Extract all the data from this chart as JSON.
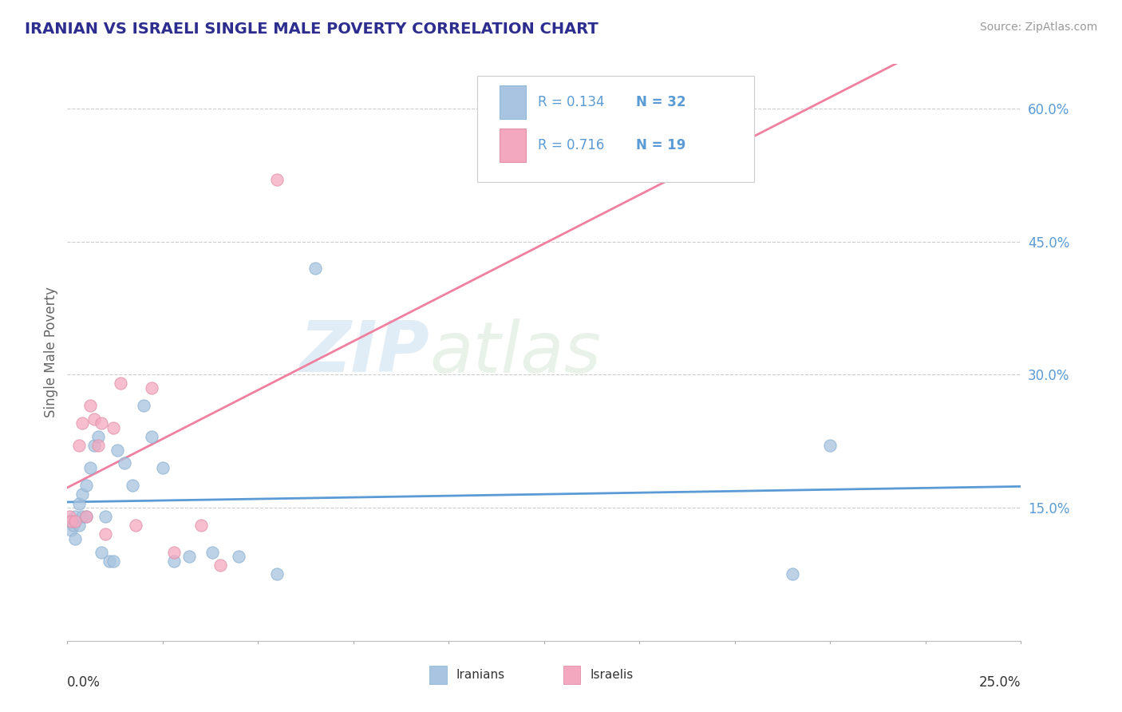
{
  "title": "IRANIAN VS ISRAELI SINGLE MALE POVERTY CORRELATION CHART",
  "source": "Source: ZipAtlas.com",
  "ylabel": "Single Male Poverty",
  "yticks": [
    0.15,
    0.3,
    0.45,
    0.6
  ],
  "ytick_labels": [
    "15.0%",
    "30.0%",
    "45.0%",
    "60.0%"
  ],
  "xlim": [
    0.0,
    0.25
  ],
  "ylim": [
    0.0,
    0.65
  ],
  "legend_r1": "R = 0.134",
  "legend_n1": "N = 32",
  "legend_r2": "R = 0.716",
  "legend_n2": "N = 19",
  "iranian_color": "#a8c4e0",
  "israeli_color": "#f4a8c0",
  "iranian_line_color": "#5b9bd5",
  "israeli_line_color": "#f080a0",
  "watermark_zip": "ZIP",
  "watermark_atlas": "atlas",
  "iranians_x": [
    0.0005,
    0.001,
    0.0015,
    0.002,
    0.002,
    0.003,
    0.003,
    0.004,
    0.004,
    0.005,
    0.005,
    0.006,
    0.007,
    0.008,
    0.009,
    0.01,
    0.011,
    0.012,
    0.013,
    0.015,
    0.017,
    0.02,
    0.022,
    0.025,
    0.028,
    0.032,
    0.038,
    0.045,
    0.055,
    0.065,
    0.19,
    0.2
  ],
  "iranians_y": [
    0.135,
    0.125,
    0.13,
    0.115,
    0.14,
    0.13,
    0.155,
    0.14,
    0.165,
    0.14,
    0.175,
    0.195,
    0.22,
    0.23,
    0.1,
    0.14,
    0.09,
    0.09,
    0.215,
    0.2,
    0.175,
    0.265,
    0.23,
    0.195,
    0.09,
    0.095,
    0.1,
    0.095,
    0.075,
    0.42,
    0.075,
    0.22
  ],
  "israelis_x": [
    0.0005,
    0.001,
    0.002,
    0.003,
    0.004,
    0.005,
    0.006,
    0.007,
    0.008,
    0.009,
    0.01,
    0.012,
    0.014,
    0.018,
    0.022,
    0.028,
    0.035,
    0.04,
    0.055
  ],
  "israelis_y": [
    0.14,
    0.135,
    0.135,
    0.22,
    0.245,
    0.14,
    0.265,
    0.25,
    0.22,
    0.245,
    0.12,
    0.24,
    0.29,
    0.13,
    0.285,
    0.1,
    0.13,
    0.085,
    0.52
  ],
  "background_color": "#ffffff",
  "grid_color": "#cccccc",
  "title_color": "#2d2d8f",
  "axis_label_color": "#5b9bd5",
  "text_color": "#333333",
  "source_color": "#999999"
}
